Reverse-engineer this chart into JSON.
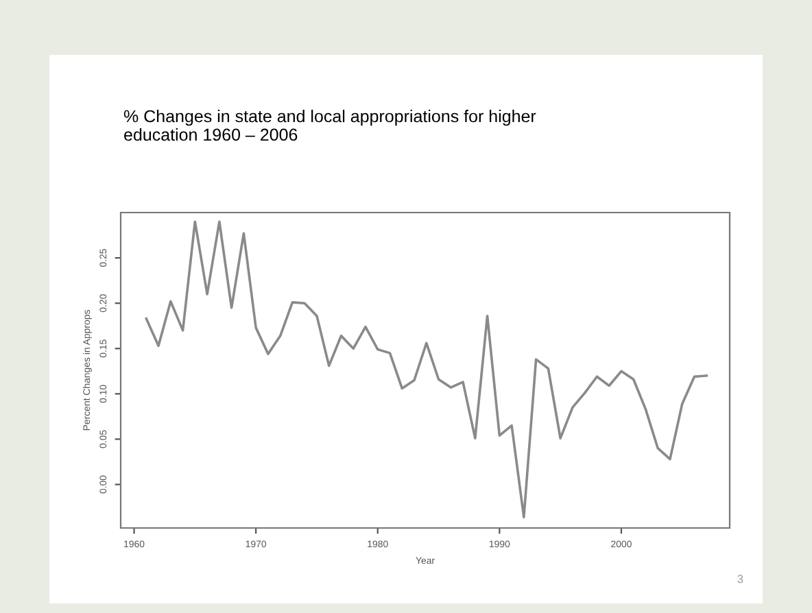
{
  "chart_data": {
    "type": "line",
    "title": "% Changes in state and local appropriations for higher\neducation 1960 – 2006",
    "xlabel": "Year",
    "ylabel": "Percent Changes in Approps",
    "x": [
      1961,
      1962,
      1963,
      1964,
      1965,
      1966,
      1967,
      1968,
      1969,
      1970,
      1971,
      1972,
      1973,
      1974,
      1975,
      1976,
      1977,
      1978,
      1979,
      1980,
      1981,
      1982,
      1983,
      1984,
      1985,
      1986,
      1987,
      1988,
      1989,
      1990,
      1991,
      1992,
      1993,
      1994,
      1995,
      1996,
      1997,
      1998,
      1999,
      2000,
      2001,
      2002,
      2003,
      2004,
      2005,
      2006,
      2007
    ],
    "series": [
      {
        "color": "#8a8a8a",
        "values": [
          0.183,
          0.153,
          0.202,
          0.17,
          0.29,
          0.21,
          0.29,
          0.195,
          0.277,
          0.173,
          0.144,
          0.164,
          0.201,
          0.2,
          0.186,
          0.131,
          0.164,
          0.15,
          0.174,
          0.149,
          0.145,
          0.106,
          0.115,
          0.156,
          0.116,
          0.107,
          0.113,
          0.051,
          0.186,
          0.054,
          0.065,
          -0.036,
          0.138,
          0.128,
          0.051,
          0.085,
          0.101,
          0.119,
          0.109,
          0.125,
          0.116,
          0.083,
          0.04,
          0.028,
          0.089,
          0.119,
          0.12
        ]
      }
    ],
    "xlim": [
      1958.9,
      2008.9
    ],
    "ylim": [
      -0.048,
      0.3
    ],
    "xticks": [
      1960,
      1970,
      1980,
      1990,
      2000
    ],
    "yticks": [
      {
        "value": 0,
        "label": "0.00"
      },
      0.05,
      {
        "value": 0.1,
        "label": "0.10"
      },
      0.15,
      {
        "value": 0.2,
        "label": "0.20"
      },
      0.25
    ],
    "annotations": [
      "3"
    ],
    "grid": false,
    "legend": false,
    "marker": "none",
    "line_style": "solid"
  }
}
